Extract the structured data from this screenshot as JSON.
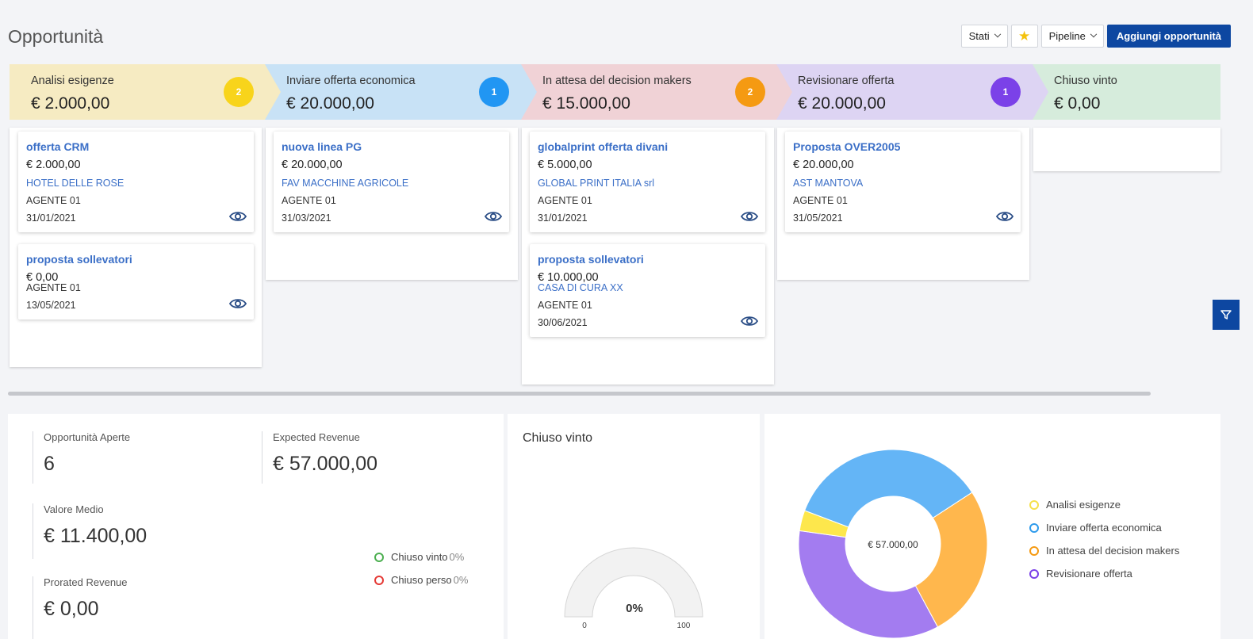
{
  "page_title": "Opportunità",
  "toolbar": {
    "stati_label": "Stati",
    "pipeline_label": "Pipeline",
    "add_label": "Aggiungi opportunità"
  },
  "stages": [
    {
      "label": "Analisi esigenze",
      "amount": "€ 2.000,00",
      "count": "2",
      "color": "#f6ebc2",
      "badge_color": "#f8d41b"
    },
    {
      "label": "Inviare offerta economica",
      "amount": "€ 20.000,00",
      "count": "1",
      "color": "#c8e2f6",
      "badge_color": "#2196f3"
    },
    {
      "label": "In attesa del decision makers",
      "amount": "€ 15.000,00",
      "count": "2",
      "color": "#f0d2d6",
      "badge_color": "#f59a12"
    },
    {
      "label": "Revisionare offerta",
      "amount": "€ 20.000,00",
      "count": "1",
      "color": "#ddd4f3",
      "badge_color": "#7b41e8"
    },
    {
      "label": "Chiuso vinto",
      "amount": "€ 0,00",
      "count": "",
      "color": "#d6ecdc",
      "badge_color": ""
    }
  ],
  "cards": {
    "c1": {
      "title": "offerta CRM",
      "amount": "€ 2.000,00",
      "company": "HOTEL DELLE ROSE",
      "agent": "AGENTE 01",
      "date": "31/01/2021"
    },
    "c2": {
      "title": "proposta sollevatori",
      "amount": "€ 0,00",
      "company": "",
      "agent": "AGENTE 01",
      "date": "13/05/2021"
    },
    "c3": {
      "title": "nuova linea PG",
      "amount": "€ 20.000,00",
      "company": "FAV MACCHINE AGRICOLE",
      "agent": "AGENTE 01",
      "date": "31/03/2021"
    },
    "c4": {
      "title": "globalprint offerta divani",
      "amount": "€ 5.000,00",
      "company": "GLOBAL PRINT ITALIA srl",
      "agent": "AGENTE 01",
      "date": "31/01/2021"
    },
    "c5": {
      "title": "proposta sollevatori",
      "amount": "€ 10.000,00",
      "company": "CASA DI CURA XX",
      "agent": "AGENTE 01",
      "date": "30/06/2021"
    },
    "c6": {
      "title": "Proposta OVER2005",
      "amount": "€ 20.000,00",
      "company": "AST MANTOVA",
      "agent": "AGENTE 01",
      "date": "31/05/2021"
    }
  },
  "kpis": {
    "open_label": "Opportunità Aperte",
    "open_value": "6",
    "expected_label": "Expected Revenue",
    "expected_value": "€ 57.000,00",
    "avg_label": "Valore Medio",
    "avg_value": "€ 11.400,00",
    "prorated_label": "Prorated Revenue",
    "prorated_value": "€ 0,00"
  },
  "status_legend": [
    {
      "label": "Chiuso vinto",
      "pct": "0%",
      "color": "#4caf50"
    },
    {
      "label": "Chiuso perso",
      "pct": "0%",
      "color": "#e53935"
    }
  ],
  "gauge": {
    "title": "Chiuso vinto",
    "value_label": "0%",
    "value": 0,
    "min_label": "0",
    "max_label": "100"
  },
  "chart_data": {
    "type": "pie",
    "variant": "donut",
    "center_label": "€ 57.000,00",
    "categories": [
      "Analisi esigenze",
      "Inviare offerta economica",
      "In attesa del decision makers",
      "Revisionare offerta"
    ],
    "values": [
      2000,
      20000,
      15000,
      20000
    ],
    "colors": [
      "#fde74c",
      "#64b5f6",
      "#ffb74d",
      "#a37cf0"
    ],
    "legend_colors": [
      "#f6e04a",
      "#2f9bec",
      "#f59a12",
      "#7b41e8"
    ],
    "legend_position": "right"
  }
}
